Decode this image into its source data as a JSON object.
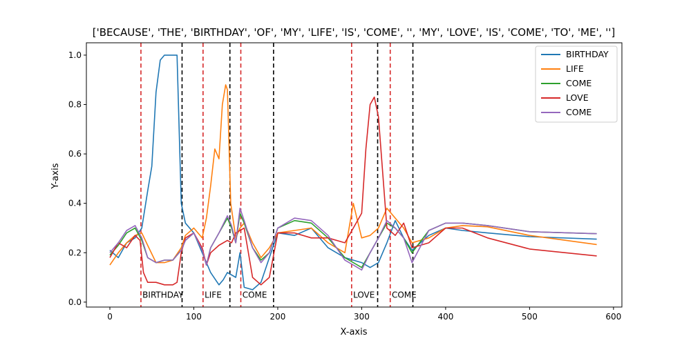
{
  "chart_data": {
    "type": "line",
    "title": "['BECAUSE', 'THE', 'BIRTHDAY', 'OF', 'MY', 'LIFE', 'IS', 'COME', '', 'MY', 'LOVE', 'IS', 'COME', 'TO', 'ME', '']",
    "xlabel": "X-axis",
    "ylabel": "Y-axis",
    "xlim": [
      -28,
      610
    ],
    "ylim": [
      -0.02,
      1.05
    ],
    "xticks": [
      0,
      100,
      200,
      300,
      400,
      500,
      600
    ],
    "yticks": [
      0.0,
      0.2,
      0.4,
      0.6,
      0.8,
      1.0
    ],
    "xtick_labels": [
      "0",
      "100",
      "200",
      "300",
      "400",
      "500",
      "600"
    ],
    "ytick_labels": [
      "0.0",
      "0.2",
      "0.4",
      "0.6",
      "0.8",
      "1.0"
    ],
    "grid": false,
    "legend_position": "top-right",
    "series": [
      {
        "name": "BIRTHDAY",
        "color": "#1f77b4",
        "x": [
          0,
          10,
          20,
          30,
          38,
          45,
          50,
          55,
          60,
          65,
          70,
          80,
          85,
          90,
          100,
          110,
          115,
          120,
          130,
          135,
          140,
          150,
          155,
          160,
          170,
          180,
          190,
          200,
          220,
          240,
          260,
          280,
          300,
          310,
          320,
          330,
          340,
          350,
          360,
          380,
          400,
          420,
          450,
          500,
          580
        ],
        "y": [
          0.21,
          0.18,
          0.24,
          0.26,
          0.3,
          0.45,
          0.55,
          0.85,
          0.98,
          1.0,
          1.0,
          1.0,
          0.4,
          0.32,
          0.28,
          0.2,
          0.16,
          0.12,
          0.07,
          0.09,
          0.12,
          0.1,
          0.2,
          0.06,
          0.05,
          0.08,
          0.18,
          0.28,
          0.27,
          0.3,
          0.22,
          0.18,
          0.16,
          0.14,
          0.16,
          0.24,
          0.33,
          0.26,
          0.21,
          0.27,
          0.3,
          0.29,
          0.28,
          0.265,
          0.255
        ]
      },
      {
        "name": "LIFE",
        "color": "#ff7f0e",
        "x": [
          0,
          10,
          20,
          30,
          38,
          45,
          55,
          65,
          75,
          85,
          90,
          100,
          110,
          115,
          120,
          125,
          130,
          134,
          138,
          140,
          144,
          150,
          155,
          160,
          170,
          180,
          190,
          200,
          220,
          240,
          260,
          280,
          290,
          300,
          310,
          320,
          330,
          340,
          350,
          360,
          380,
          400,
          420,
          450,
          500,
          580
        ],
        "y": [
          0.15,
          0.2,
          0.24,
          0.27,
          0.28,
          0.23,
          0.16,
          0.16,
          0.17,
          0.22,
          0.27,
          0.3,
          0.26,
          0.34,
          0.47,
          0.62,
          0.58,
          0.8,
          0.88,
          0.86,
          0.4,
          0.26,
          0.3,
          0.32,
          0.24,
          0.18,
          0.22,
          0.28,
          0.29,
          0.3,
          0.24,
          0.2,
          0.4,
          0.26,
          0.27,
          0.3,
          0.38,
          0.34,
          0.3,
          0.24,
          0.26,
          0.3,
          0.31,
          0.305,
          0.27,
          0.233
        ]
      },
      {
        "name": "COME",
        "color": "#2ca02c",
        "x": [
          0,
          10,
          20,
          30,
          38,
          45,
          55,
          65,
          75,
          85,
          90,
          100,
          110,
          115,
          120,
          130,
          140,
          145,
          150,
          155,
          160,
          170,
          180,
          190,
          200,
          220,
          240,
          260,
          280,
          290,
          300,
          310,
          320,
          330,
          340,
          350,
          360,
          380,
          400,
          420,
          450,
          500,
          580
        ],
        "y": [
          0.19,
          0.23,
          0.28,
          0.3,
          0.25,
          0.18,
          0.16,
          0.17,
          0.17,
          0.21,
          0.25,
          0.28,
          0.21,
          0.15,
          0.22,
          0.28,
          0.34,
          0.3,
          0.24,
          0.36,
          0.32,
          0.22,
          0.17,
          0.2,
          0.3,
          0.33,
          0.32,
          0.26,
          0.18,
          0.16,
          0.14,
          0.2,
          0.26,
          0.32,
          0.3,
          0.26,
          0.2,
          0.29,
          0.32,
          0.32,
          0.31,
          0.285,
          0.277
        ]
      },
      {
        "name": "LOVE",
        "color": "#d62728",
        "x": [
          0,
          10,
          20,
          30,
          36,
          40,
          45,
          55,
          65,
          75,
          80,
          85,
          90,
          100,
          110,
          115,
          120,
          130,
          140,
          145,
          150,
          160,
          170,
          180,
          190,
          200,
          220,
          240,
          260,
          280,
          290,
          300,
          305,
          310,
          315,
          320,
          330,
          340,
          350,
          360,
          380,
          400,
          420,
          450,
          500,
          580
        ],
        "y": [
          0.18,
          0.24,
          0.22,
          0.27,
          0.25,
          0.12,
          0.08,
          0.08,
          0.07,
          0.07,
          0.08,
          0.2,
          0.26,
          0.28,
          0.22,
          0.15,
          0.2,
          0.23,
          0.25,
          0.24,
          0.28,
          0.3,
          0.1,
          0.07,
          0.1,
          0.28,
          0.28,
          0.26,
          0.26,
          0.24,
          0.3,
          0.36,
          0.62,
          0.8,
          0.83,
          0.75,
          0.3,
          0.27,
          0.32,
          0.22,
          0.24,
          0.3,
          0.3,
          0.26,
          0.215,
          0.187
        ]
      },
      {
        "name": "COME",
        "color": "#9467bd",
        "x": [
          0,
          10,
          20,
          30,
          38,
          45,
          55,
          65,
          75,
          85,
          90,
          100,
          110,
          115,
          120,
          130,
          140,
          145,
          150,
          155,
          160,
          170,
          180,
          190,
          200,
          220,
          240,
          260,
          280,
          290,
          300,
          310,
          320,
          330,
          340,
          350,
          360,
          380,
          400,
          420,
          450,
          500,
          580
        ],
        "y": [
          0.2,
          0.24,
          0.29,
          0.31,
          0.26,
          0.18,
          0.16,
          0.17,
          0.17,
          0.21,
          0.25,
          0.28,
          0.21,
          0.15,
          0.22,
          0.28,
          0.35,
          0.31,
          0.24,
          0.38,
          0.33,
          0.22,
          0.16,
          0.2,
          0.3,
          0.34,
          0.33,
          0.27,
          0.17,
          0.15,
          0.13,
          0.2,
          0.26,
          0.33,
          0.3,
          0.26,
          0.16,
          0.29,
          0.32,
          0.32,
          0.31,
          0.285,
          0.277
        ]
      }
    ],
    "vlines": [
      {
        "x": 37,
        "color": "#d62728",
        "style": "dashed"
      },
      {
        "x": 86,
        "color": "#000000",
        "style": "dashed"
      },
      {
        "x": 111,
        "color": "#d62728",
        "style": "dashed"
      },
      {
        "x": 143,
        "color": "#000000",
        "style": "dashed"
      },
      {
        "x": 156,
        "color": "#d62728",
        "style": "dashed"
      },
      {
        "x": 195,
        "color": "#000000",
        "style": "dashed"
      },
      {
        "x": 288,
        "color": "#d62728",
        "style": "dashed"
      },
      {
        "x": 319,
        "color": "#000000",
        "style": "dashed"
      },
      {
        "x": 334,
        "color": "#d62728",
        "style": "dashed"
      },
      {
        "x": 361,
        "color": "#000000",
        "style": "dashed"
      }
    ],
    "annotations": [
      {
        "text": "BIRTHDAY",
        "x": 38,
        "y": 0.015
      },
      {
        "text": "LIFE",
        "x": 112,
        "y": 0.015
      },
      {
        "text": "COME",
        "x": 157,
        "y": 0.015
      },
      {
        "text": "LOVE",
        "x": 289,
        "y": 0.015
      },
      {
        "text": "COME",
        "x": 335,
        "y": 0.015
      }
    ]
  }
}
